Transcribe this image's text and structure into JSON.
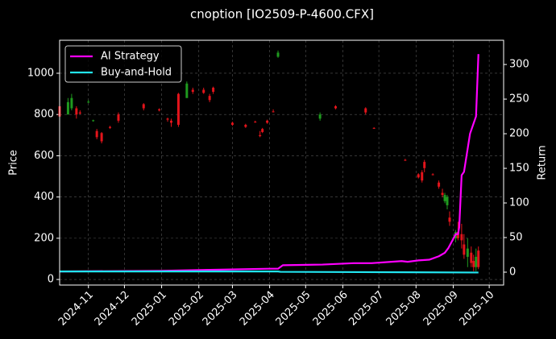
{
  "chart_data": {
    "type": "candlestick",
    "title": "cnoption [IO2509-P-4600.CFX]",
    "y_label": "Price",
    "y2_label": "Return",
    "x": [
      "2024-10-08",
      "2024-10-15",
      "2024-10-18",
      "2024-10-22",
      "2024-10-25",
      "2024-11-01",
      "2024-11-05",
      "2024-11-08",
      "2024-11-12",
      "2024-11-19",
      "2024-11-26",
      "2024-12-17",
      "2024-12-30",
      "2025-01-06",
      "2025-01-09",
      "2025-01-15",
      "2025-01-22",
      "2025-01-27",
      "2025-02-05",
      "2025-02-10",
      "2025-02-13",
      "2025-03-01",
      "2025-03-12",
      "2025-03-20",
      "2025-03-24",
      "2025-03-26",
      "2025-03-30",
      "2025-04-04",
      "2025-04-08",
      "2025-05-13",
      "2025-05-26",
      "2025-06-20",
      "2025-06-27",
      "2025-07-23",
      "2025-08-03",
      "2025-08-06",
      "2025-08-08",
      "2025-08-15",
      "2025-08-20",
      "2025-08-23",
      "2025-08-25",
      "2025-08-27",
      "2025-08-29",
      "2025-09-03",
      "2025-09-05",
      "2025-09-08",
      "2025-09-10",
      "2025-09-13",
      "2025-09-16",
      "2025-09-18",
      "2025-09-20",
      "2025-09-22"
    ],
    "open": [
      840,
      800,
      830,
      830,
      810,
      860,
      770,
      720,
      710,
      740,
      800,
      850,
      825,
      780,
      770,
      900,
      880,
      920,
      920,
      890,
      930,
      760,
      750,
      765,
      700,
      730,
      770,
      815,
      1080,
      780,
      840,
      830,
      735,
      580,
      510,
      520,
      570,
      510,
      470,
      420,
      380,
      360,
      300,
      200,
      230,
      220,
      170,
      110,
      130,
      90,
      60,
      140
    ],
    "high": [
      870,
      880,
      900,
      840,
      820,
      870,
      775,
      730,
      715,
      745,
      810,
      855,
      830,
      785,
      780,
      905,
      960,
      930,
      930,
      900,
      935,
      765,
      755,
      770,
      720,
      735,
      775,
      825,
      1110,
      810,
      845,
      835,
      738,
      585,
      515,
      530,
      580,
      515,
      480,
      440,
      420,
      410,
      330,
      240,
      280,
      270,
      220,
      200,
      160,
      120,
      150,
      160
    ],
    "low": [
      770,
      800,
      820,
      780,
      800,
      855,
      765,
      680,
      660,
      730,
      760,
      820,
      815,
      765,
      740,
      740,
      880,
      900,
      900,
      860,
      900,
      745,
      735,
      760,
      690,
      710,
      755,
      810,
      1075,
      770,
      825,
      800,
      730,
      575,
      490,
      470,
      520,
      505,
      440,
      400,
      370,
      340,
      260,
      180,
      190,
      150,
      100,
      60,
      60,
      40,
      40,
      50
    ],
    "close": [
      790,
      860,
      880,
      800,
      805,
      862,
      772,
      690,
      670,
      735,
      770,
      830,
      820,
      775,
      760,
      750,
      950,
      910,
      905,
      870,
      910,
      750,
      740,
      762,
      695,
      715,
      760,
      812,
      1100,
      800,
      830,
      810,
      733,
      578,
      495,
      480,
      540,
      508,
      450,
      410,
      410,
      400,
      280,
      230,
      200,
      190,
      120,
      150,
      80,
      60,
      110,
      60
    ],
    "up_color": "#1f9a1f",
    "down_color": "#e3141b",
    "xlim": [
      "2024-10-08",
      "2025-10-13"
    ],
    "xticks": [
      {
        "value": "2024-11-01",
        "label": "2024-11"
      },
      {
        "value": "2024-12-01",
        "label": "2024-12"
      },
      {
        "value": "2025-01-01",
        "label": "2025-01"
      },
      {
        "value": "2025-02-01",
        "label": "2025-02"
      },
      {
        "value": "2025-03-01",
        "label": "2025-03"
      },
      {
        "value": "2025-04-01",
        "label": "2025-04"
      },
      {
        "value": "2025-05-01",
        "label": "2025-05"
      },
      {
        "value": "2025-06-01",
        "label": "2025-06"
      },
      {
        "value": "2025-07-01",
        "label": "2025-07"
      },
      {
        "value": "2025-08-01",
        "label": "2025-08"
      },
      {
        "value": "2025-09-01",
        "label": "2025-09"
      },
      {
        "value": "2025-10-01",
        "label": "2025-10"
      }
    ],
    "ylim": [
      -27,
      1160
    ],
    "yticks": [
      0,
      200,
      400,
      600,
      800,
      1000
    ],
    "y2lim": [
      -18.6,
      335
    ],
    "y2ticks": [
      0,
      50,
      100,
      150,
      200,
      250,
      300
    ],
    "grid": true,
    "legend": "upper left",
    "series": [
      {
        "name": "AI Strategy",
        "color": "#ff00ff",
        "axis": "y2",
        "x": [
          "2024-10-08",
          "2025-01-01",
          "2025-04-01",
          "2025-04-08",
          "2025-04-12",
          "2025-05-15",
          "2025-06-10",
          "2025-06-25",
          "2025-07-20",
          "2025-07-25",
          "2025-08-03",
          "2025-08-12",
          "2025-08-20",
          "2025-08-25",
          "2025-08-28",
          "2025-09-01",
          "2025-09-03",
          "2025-09-05",
          "2025-09-06",
          "2025-09-08",
          "2025-09-10",
          "2025-09-15",
          "2025-09-18",
          "2025-09-20",
          "2025-09-22"
        ],
        "values": [
          1,
          2,
          5,
          5,
          10,
          11,
          13,
          13,
          16,
          15,
          17,
          18,
          23,
          28,
          35,
          48,
          55,
          55,
          65,
          140,
          145,
          200,
          215,
          225,
          315
        ]
      },
      {
        "name": "Buy-and-Hold",
        "color": "#22e5f0",
        "axis": "y2",
        "x": [
          "2024-10-08",
          "2025-04-08",
          "2025-04-10",
          "2025-09-22"
        ],
        "values": [
          1,
          1,
          0.5,
          -0.5
        ]
      }
    ]
  }
}
